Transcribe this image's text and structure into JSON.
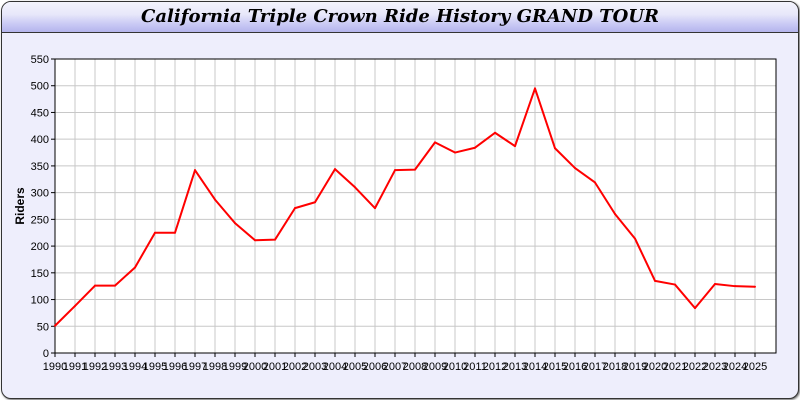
{
  "chart_data": {
    "type": "line",
    "title": "California Triple Crown Ride History GRAND TOUR",
    "xlabel": "",
    "ylabel": "Riders",
    "ylim": [
      0,
      550
    ],
    "yticks": [
      0,
      50,
      100,
      150,
      200,
      250,
      300,
      350,
      400,
      450,
      500,
      550
    ],
    "grid": true,
    "categories": [
      "1990",
      "1991",
      "1992",
      "1993",
      "1994",
      "1995",
      "1996",
      "1997",
      "1998",
      "1999",
      "2000",
      "2001",
      "2002",
      "2003",
      "2004",
      "2005",
      "2006",
      "2007",
      "2008",
      "2009",
      "2010",
      "2011",
      "2012",
      "2013",
      "2014",
      "2015",
      "2016",
      "2017",
      "2018",
      "2019",
      "2020",
      "2021",
      "2022",
      "2023",
      "2024",
      "2025"
    ],
    "series": [
      {
        "color": "#ff0000",
        "values": [
          51,
          88,
          126,
          126,
          160,
          225,
          225,
          342,
          287,
          243,
          211,
          212,
          271,
          282,
          344,
          310,
          271,
          342,
          343,
          394,
          375,
          384,
          412,
          387,
          495,
          383,
          346,
          319,
          260,
          214,
          135,
          128,
          84,
          129,
          125,
          124
        ]
      }
    ]
  }
}
